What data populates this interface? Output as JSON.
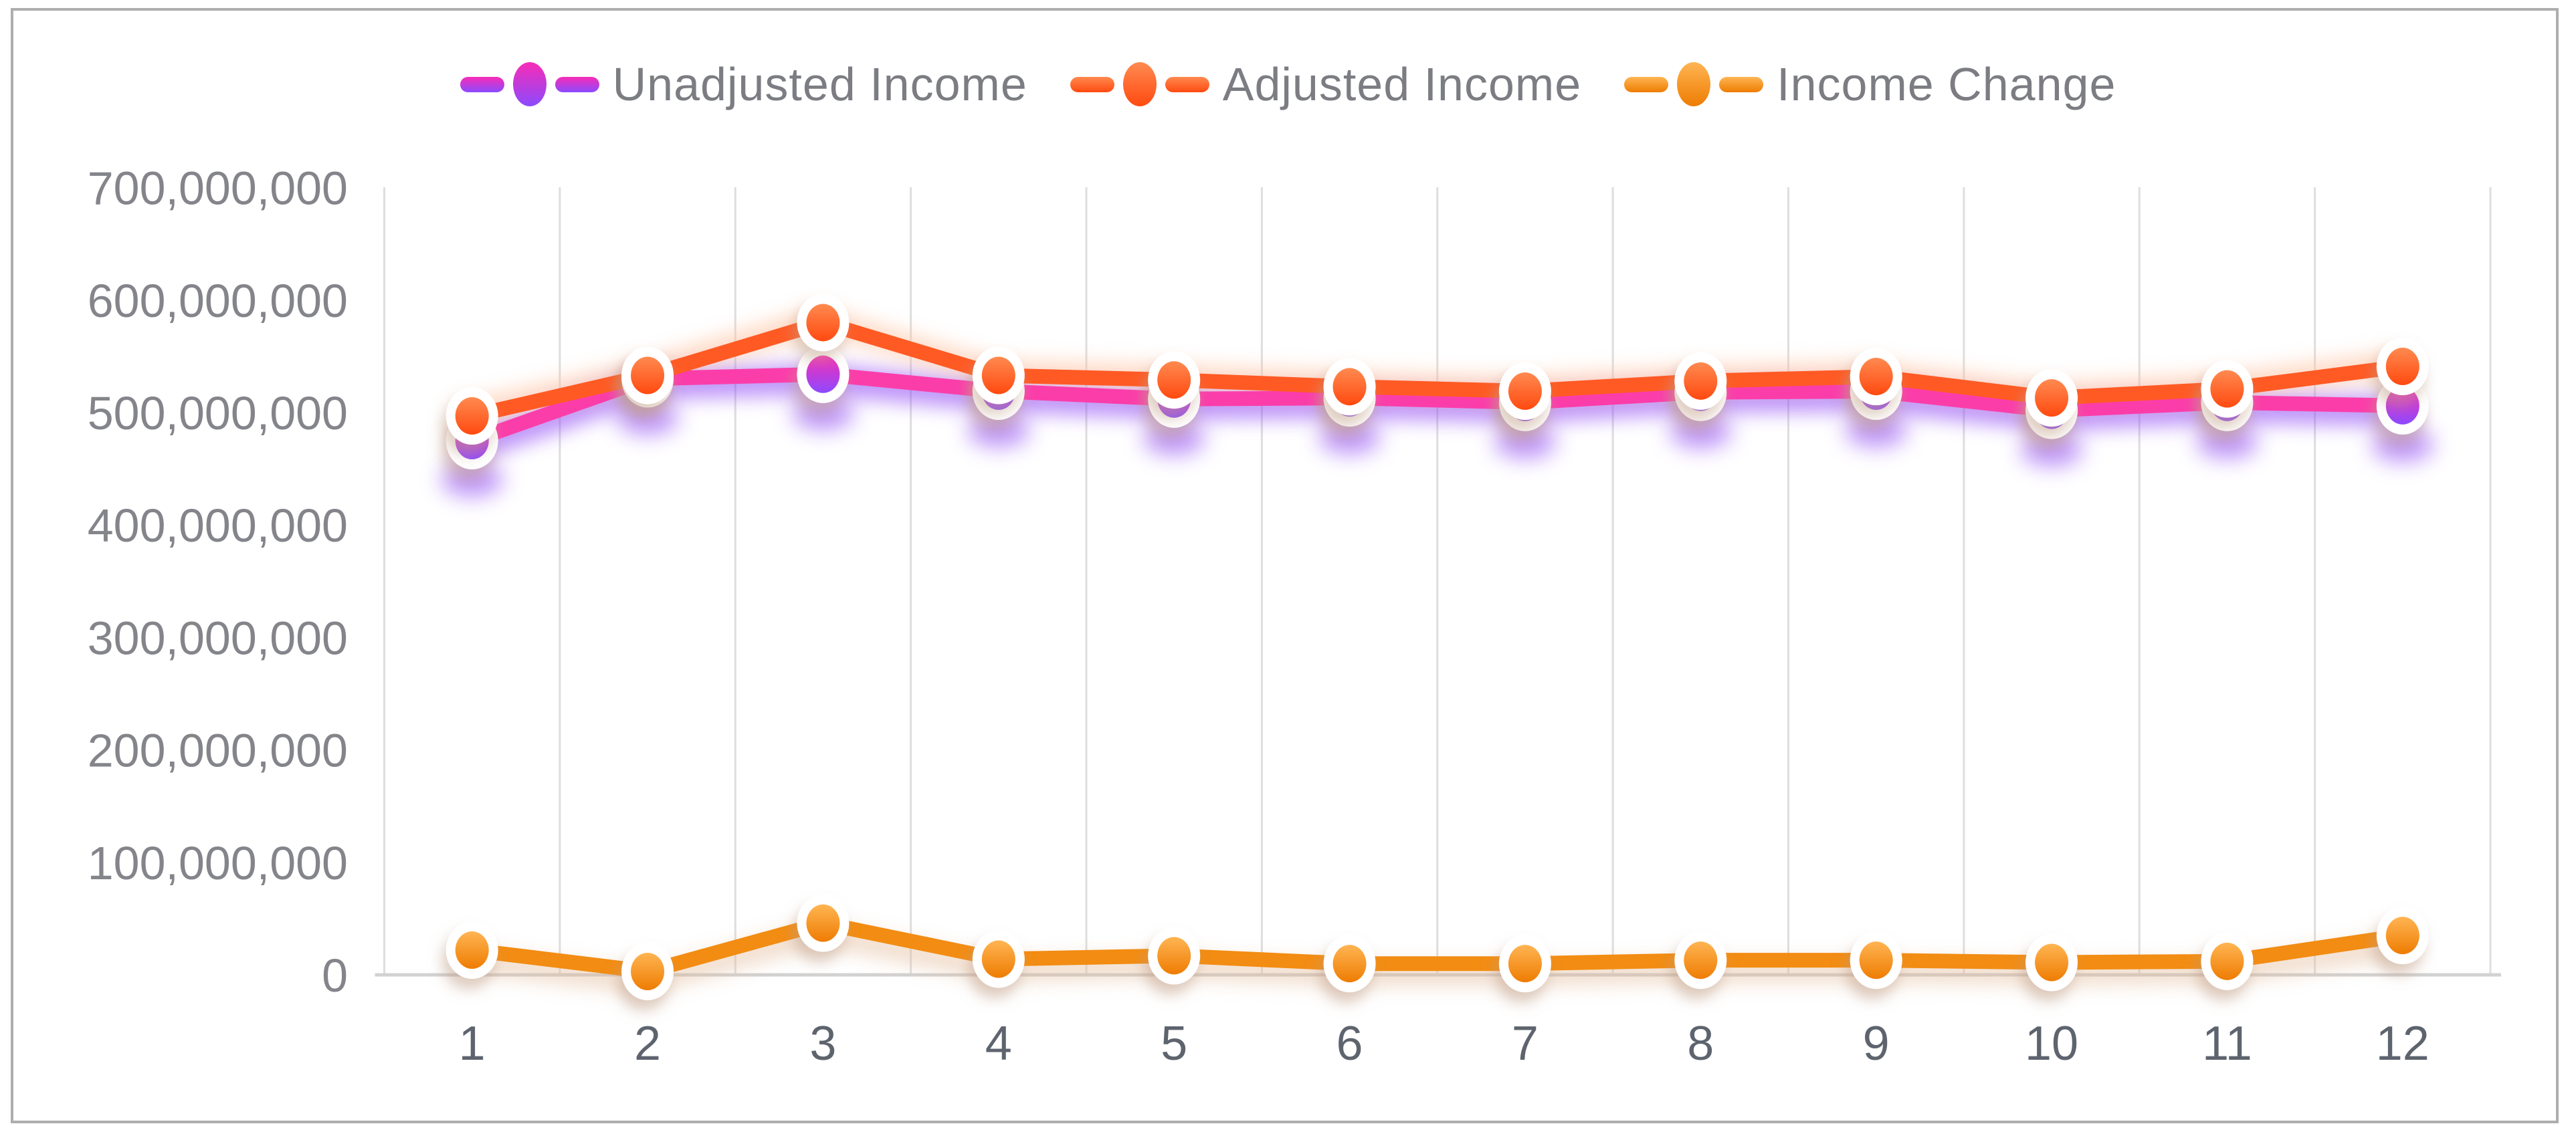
{
  "chart": {
    "legend": [
      {
        "label": "Unadjusted Income"
      },
      {
        "label": "Adjusted Income"
      },
      {
        "label": "Income Change"
      }
    ],
    "y_axis": {
      "tick_labels": [
        "700,000,000",
        "600,000,000",
        "500,000,000",
        "400,000,000",
        "300,000,000",
        "200,000,000",
        "100,000,000",
        "0"
      ]
    },
    "x_axis": {
      "tick_labels": [
        "1",
        "2",
        "3",
        "4",
        "5",
        "6",
        "7",
        "8",
        "9",
        "10",
        "11",
        "12"
      ]
    },
    "colors": {
      "grid": "#dedede",
      "axis_line": "#d2d2d2",
      "frame_border": "#aeaeae",
      "y_tick_text": "#84858b",
      "x_tick_text": "#5e646e",
      "legend_text": "#7b7d82"
    }
  },
  "chart_data": {
    "type": "line",
    "x": [
      1,
      2,
      3,
      4,
      5,
      6,
      7,
      8,
      9,
      10,
      11,
      12
    ],
    "title": "",
    "xlabel": "",
    "ylabel": "",
    "ylim": [
      0,
      700000000
    ],
    "y_tick_step": 100000000,
    "grid": "vertical-only",
    "legend_position": "top-center",
    "series": [
      {
        "name": "Unadjusted Income",
        "values": [
          475000000,
          530000000,
          534000000,
          519000000,
          512000000,
          513000000,
          509000000,
          518000000,
          519000000,
          502000000,
          509000000,
          506000000
        ],
        "line_color": "#fb3daa",
        "glow_color": "#8a3ff5",
        "marker_top_color": "#f82cb6",
        "marker_bottom_color": "#8c4afe"
      },
      {
        "name": "Adjusted Income",
        "values": [
          497000000,
          533000000,
          580000000,
          533000000,
          529000000,
          523000000,
          519000000,
          528000000,
          532000000,
          513000000,
          521000000,
          541000000
        ],
        "line_color": "#ff5a24",
        "glow_color": "#ffc2a0",
        "marker_top_color": "#ff8a50",
        "marker_bottom_color": "#ff4a10"
      },
      {
        "name": "Income Change",
        "values": [
          22000000,
          3000000,
          46000000,
          14000000,
          17000000,
          10000000,
          10000000,
          13000000,
          13000000,
          11000000,
          12000000,
          35000000
        ],
        "line_color": "#f28c12",
        "glow_color": "#e3bb9a",
        "marker_top_color": "#ffb553",
        "marker_bottom_color": "#ee7c02"
      }
    ]
  }
}
